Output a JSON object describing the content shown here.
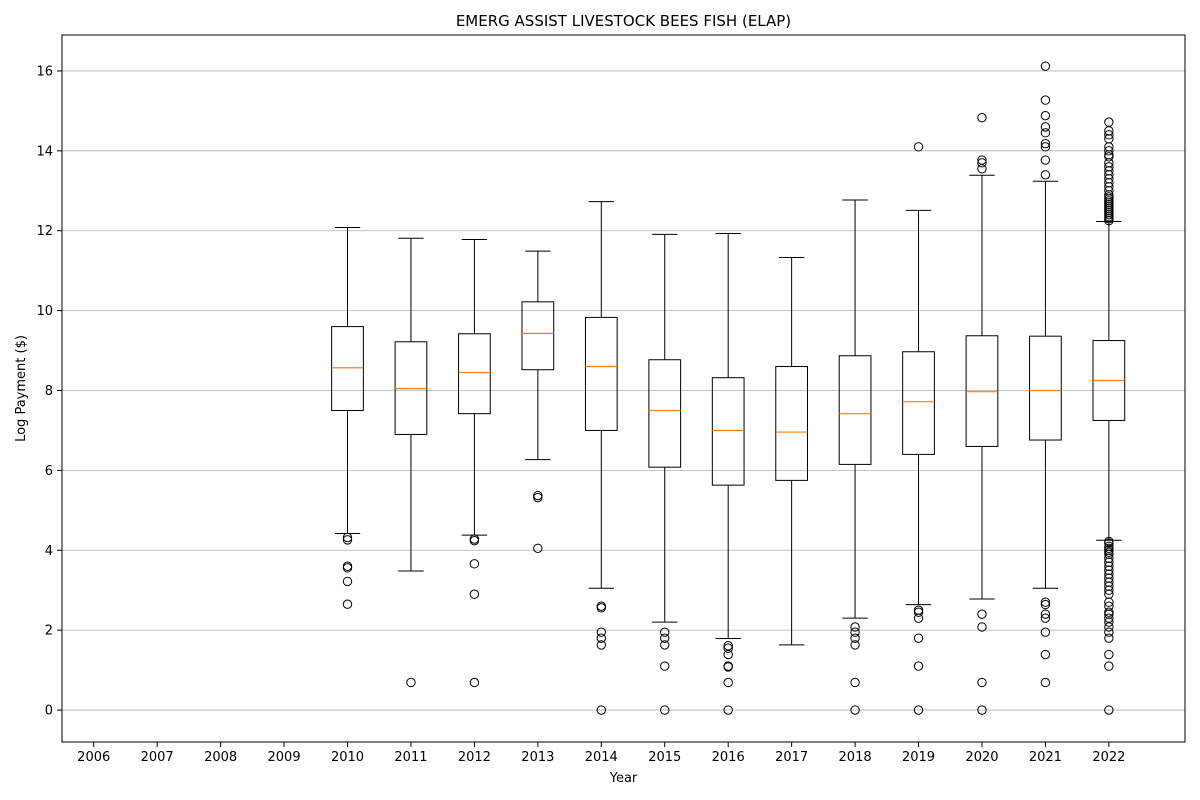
{
  "chart_data": {
    "type": "box",
    "title": "EMERG ASSIST LIVESTOCK BEES FISH (ELAP)",
    "xlabel": "Year",
    "ylabel": "Log Payment ($)",
    "ylim": [
      -0.8,
      16.9
    ],
    "yticks": [
      0,
      2,
      4,
      6,
      8,
      10,
      12,
      14,
      16
    ],
    "grid": "horizontal",
    "categories": [
      "2006",
      "2007",
      "2008",
      "2009",
      "2010",
      "2011",
      "2012",
      "2013",
      "2014",
      "2015",
      "2016",
      "2017",
      "2018",
      "2019",
      "2020",
      "2021",
      "2022"
    ],
    "boxes": [
      null,
      null,
      null,
      null,
      {
        "whislo": 4.42,
        "q1": 7.5,
        "median": 8.57,
        "q3": 9.6,
        "whishi": 12.08,
        "fliers": [
          4.32,
          4.26,
          3.6,
          3.56,
          3.22,
          2.65
        ]
      },
      {
        "whislo": 3.48,
        "q1": 6.9,
        "median": 8.05,
        "q3": 9.22,
        "whishi": 11.81,
        "fliers": [
          0.69
        ]
      },
      {
        "whislo": 4.38,
        "q1": 7.42,
        "median": 8.45,
        "q3": 9.42,
        "whishi": 11.78,
        "fliers": [
          4.28,
          4.24,
          3.66,
          2.9,
          0.69
        ]
      },
      {
        "whislo": 6.27,
        "q1": 8.52,
        "median": 9.43,
        "q3": 10.22,
        "whishi": 11.49,
        "fliers": [
          5.37,
          5.32,
          4.05
        ]
      },
      {
        "whislo": 3.05,
        "q1": 7.0,
        "median": 8.6,
        "q3": 9.83,
        "whishi": 12.73,
        "fliers": [
          2.6,
          2.56,
          1.95,
          1.8,
          1.63,
          0.0
        ]
      },
      {
        "whislo": 2.2,
        "q1": 6.08,
        "median": 7.5,
        "q3": 8.77,
        "whishi": 11.91,
        "fliers": [
          1.95,
          1.8,
          1.63,
          1.1,
          0.0
        ]
      },
      {
        "whislo": 1.79,
        "q1": 5.63,
        "median": 7.0,
        "q3": 8.32,
        "whishi": 11.93,
        "fliers": [
          1.61,
          1.55,
          1.39,
          1.1,
          1.08,
          0.69,
          0.0
        ]
      },
      {
        "whislo": 1.63,
        "q1": 5.75,
        "median": 6.96,
        "q3": 8.6,
        "whishi": 11.33,
        "fliers": []
      },
      {
        "whislo": 2.3,
        "q1": 6.15,
        "median": 7.42,
        "q3": 8.87,
        "whishi": 12.77,
        "fliers": [
          2.08,
          1.95,
          1.8,
          1.63,
          0.69,
          0.0
        ]
      },
      {
        "whislo": 2.64,
        "q1": 6.4,
        "median": 7.72,
        "q3": 8.97,
        "whishi": 12.51,
        "fliers": [
          14.1,
          2.5,
          2.45,
          2.3,
          1.8,
          1.1,
          0.0
        ]
      },
      {
        "whislo": 2.78,
        "q1": 6.6,
        "median": 7.97,
        "q3": 9.37,
        "whishi": 13.39,
        "fliers": [
          14.83,
          13.77,
          13.7,
          13.55,
          2.4,
          2.08,
          0.69,
          0.0
        ]
      },
      {
        "whislo": 3.05,
        "q1": 6.76,
        "median": 8.0,
        "q3": 9.36,
        "whishi": 13.24,
        "fliers": [
          16.12,
          15.27,
          14.88,
          14.6,
          14.45,
          14.18,
          14.1,
          13.77,
          13.4,
          2.7,
          2.64,
          2.4,
          2.3,
          1.95,
          1.39,
          0.69
        ]
      },
      {
        "whislo": 4.25,
        "q1": 7.25,
        "median": 8.25,
        "q3": 9.25,
        "whishi": 12.23,
        "fliers": [
          14.72,
          14.5,
          14.4,
          14.3,
          14.1,
          14.0,
          13.9,
          13.85,
          13.7,
          13.6,
          13.5,
          13.4,
          13.3,
          13.2,
          13.1,
          13.0,
          12.9,
          12.85,
          12.8,
          12.75,
          12.7,
          12.65,
          12.6,
          12.55,
          12.5,
          12.45,
          12.4,
          12.35,
          12.3,
          12.25,
          4.22,
          4.18,
          4.1,
          4.05,
          4.0,
          3.95,
          3.9,
          3.8,
          3.7,
          3.6,
          3.5,
          3.4,
          3.3,
          3.2,
          3.1,
          3.0,
          2.9,
          2.7,
          2.6,
          2.45,
          2.4,
          2.3,
          2.2,
          2.08,
          1.95,
          1.8,
          1.39,
          1.1,
          0.0
        ]
      }
    ],
    "colors": {
      "box": "#000000",
      "median": "#ff7f0e",
      "grid": "#b0b0b0"
    }
  }
}
